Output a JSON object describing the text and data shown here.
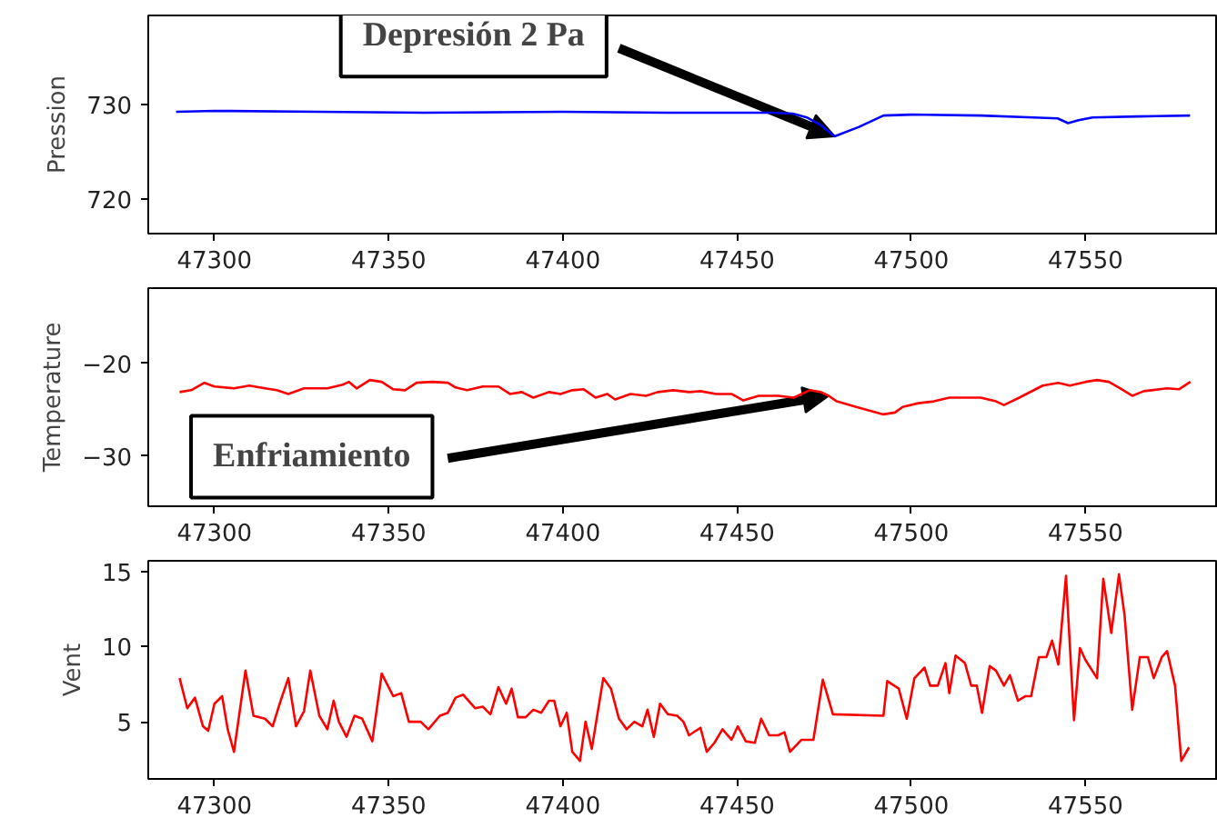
{
  "chart_data": [
    {
      "type": "line",
      "ylabel": "Pression",
      "xlim": [
        47281,
        47588
      ],
      "xticks": [
        47300,
        47350,
        47400,
        47450,
        47500,
        47550
      ],
      "ylim": [
        716.3,
        739.4
      ],
      "yticks": [
        720,
        730
      ],
      "grid": false,
      "annotations": [
        {
          "text": "Depresión 2 Pa",
          "x": 47478,
          "y": 726.6
        }
      ],
      "series": [
        {
          "color": "#0000ff",
          "x": [
            47289,
            47300,
            47330,
            47360,
            47400,
            47430,
            47460,
            47466,
            47470,
            47474,
            47478,
            47485,
            47492,
            47500,
            47520,
            47535,
            47542,
            47545,
            47548,
            47552,
            47565,
            47580
          ],
          "values": [
            729.2,
            729.3,
            729.2,
            729.1,
            729.2,
            729.1,
            729.1,
            729.0,
            728.6,
            727.8,
            726.6,
            727.6,
            728.8,
            728.9,
            728.8,
            728.6,
            728.5,
            728.0,
            728.3,
            728.6,
            728.7,
            728.8
          ]
        }
      ]
    },
    {
      "type": "line",
      "ylabel": "Temperature",
      "xlim": [
        47281,
        47588
      ],
      "xticks": [
        47300,
        47350,
        47400,
        47450,
        47500,
        47550
      ],
      "ylim": [
        -35.4,
        -11.9
      ],
      "yticks": [
        {
          "value": -30,
          "label": "−30"
        },
        {
          "value": -20,
          "label": "−20"
        }
      ],
      "grid": false,
      "annotations": [
        {
          "text": "Enfriamiento",
          "x": 47476.3,
          "y": -23.5
        }
      ],
      "series": [
        {
          "color": "#ff0000",
          "x": [
            47290.0,
            47293.3,
            47297.1,
            47300,
            47305.6,
            47310.0,
            47314.5,
            47317.9,
            47321.2,
            47325.7,
            47332.4,
            47336.8,
            47338.6,
            47340.8,
            47344.6,
            47348.0,
            47351.3,
            47354.7,
            47358.0,
            47362.5,
            47367.0,
            47369.2,
            47372.5,
            47377.0,
            47381.5,
            47384.8,
            47388.2,
            47391.5,
            47396.0,
            47399.3,
            47402.7,
            47406.0,
            47409.4,
            47412.7,
            47415.0,
            47419.4,
            47423.9,
            47427.2,
            47431.7,
            47436.2,
            47439.5,
            47444.0,
            47448.4,
            47451.8,
            47456.2,
            47461.8,
            47466.3,
            47470.8,
            47474.1,
            47476.3,
            47478.6,
            47484.2,
            47492.0,
            47495.3,
            47497.5,
            47502.0,
            47506.5,
            47510.9,
            47515.4,
            47519.9,
            47524.3,
            47526.6,
            47531.0,
            47537.7,
            47542.2,
            47545.5,
            47550.0,
            47553.3,
            47556.7,
            47560.0,
            47563.4,
            47566.7,
            47571.2,
            47573.4,
            47576.8,
            47580.1
          ],
          "values": [
            -23.1,
            -22.9,
            -22.1,
            -22.5,
            -22.7,
            -22.4,
            -22.7,
            -22.9,
            -23.3,
            -22.7,
            -22.7,
            -22.3,
            -22.0,
            -22.7,
            -21.8,
            -22.0,
            -22.8,
            -22.9,
            -22.1,
            -22.0,
            -22.1,
            -22.6,
            -22.9,
            -22.5,
            -22.5,
            -23.3,
            -23.1,
            -23.7,
            -23.1,
            -23.3,
            -22.9,
            -22.8,
            -23.7,
            -23.3,
            -23.9,
            -23.3,
            -23.5,
            -23.1,
            -22.9,
            -23.1,
            -23.0,
            -23.3,
            -23.3,
            -24.0,
            -23.5,
            -23.5,
            -23.7,
            -22.9,
            -23.1,
            -23.5,
            -24.1,
            -24.7,
            -25.5,
            -25.3,
            -24.7,
            -24.3,
            -24.1,
            -23.7,
            -23.7,
            -23.7,
            -24.1,
            -24.5,
            -23.7,
            -22.4,
            -22.1,
            -22.4,
            -22.0,
            -21.8,
            -22.0,
            -22.7,
            -23.5,
            -23.0,
            -22.8,
            -22.7,
            -22.8,
            -22.0
          ]
        }
      ]
    },
    {
      "type": "line",
      "ylabel": "Vent",
      "xlim": [
        47281,
        47588
      ],
      "xticks": [
        47300,
        47350,
        47400,
        47450,
        47500,
        47550
      ],
      "ylim": [
        1.2,
        15.7
      ],
      "yticks": [
        5,
        10,
        15
      ],
      "grid": false,
      "series": [
        {
          "color": "#ff0000",
          "x": [
            47290.0,
            47292.2,
            47294.4,
            47296.7,
            47298.2,
            47300,
            47302.2,
            47303.8,
            47305.6,
            47308.9,
            47311.2,
            47314.5,
            47316.7,
            47319.0,
            47321.2,
            47323.4,
            47325.7,
            47327.5,
            47330.1,
            47332.4,
            47334.2,
            47335.7,
            47337.9,
            47340.2,
            47342.4,
            47345.3,
            47348.0,
            47351.3,
            47353.6,
            47355.8,
            47359.2,
            47361.4,
            47364.7,
            47367.0,
            47369.2,
            47371.4,
            47374.8,
            47377.0,
            47379.2,
            47381.5,
            47383.7,
            47385.3,
            47387.1,
            47389.3,
            47391.5,
            47393.8,
            47396.0,
            47397.5,
            47399.3,
            47401.1,
            47402.7,
            47404.9,
            47406.5,
            47408.3,
            47411.6,
            47413.8,
            47416.1,
            47418.3,
            47420.5,
            47422.8,
            47424.3,
            47426.1,
            47427.9,
            47430.1,
            47432.8,
            47434.6,
            47436.2,
            47439.5,
            47441.3,
            47443.5,
            47445.8,
            47448.4,
            47450.2,
            47452.5,
            47455.1,
            47456.9,
            47459.2,
            47461.8,
            47463.6,
            47465.2,
            47468.5,
            47471.9,
            47474.6,
            47477.5,
            47492.0,
            47493.1,
            47496.4,
            47498.7,
            47500.9,
            47503.8,
            47505.4,
            47507.6,
            47509.8,
            47510.9,
            47512.7,
            47515.4,
            47517.2,
            47518.8,
            47520.3,
            47522.5,
            47524.3,
            47526.6,
            47528.3,
            47530.6,
            47532.8,
            47534.4,
            47536.6,
            47538.8,
            47540.4,
            47542.2,
            47544.4,
            47546.7,
            47548.4,
            47550.0,
            47553.3,
            47555.1,
            47557.4,
            47559.6,
            47561.2,
            47563.4,
            47565.6,
            47567.9,
            47569.6,
            47571.9,
            47573.4,
            47575.7,
            47577.5,
            47579.7
          ],
          "values": [
            7.9,
            5.9,
            6.6,
            4.7,
            4.4,
            6.2,
            6.7,
            4.5,
            3.0,
            8.4,
            5.4,
            5.2,
            4.7,
            6.4,
            7.9,
            4.7,
            5.7,
            8.4,
            5.4,
            4.5,
            6.4,
            5.0,
            4.0,
            5.4,
            5.2,
            3.7,
            8.2,
            6.7,
            6.9,
            5.0,
            5.0,
            4.5,
            5.4,
            5.6,
            6.6,
            6.8,
            5.9,
            6.0,
            5.5,
            7.3,
            6.2,
            7.2,
            5.3,
            5.3,
            5.8,
            5.6,
            6.4,
            6.4,
            4.7,
            5.6,
            3.0,
            2.4,
            5.0,
            3.2,
            7.9,
            7.2,
            5.2,
            4.5,
            5.0,
            4.7,
            5.8,
            4.0,
            6.2,
            5.5,
            5.4,
            5.0,
            4.1,
            4.6,
            3.0,
            3.6,
            4.5,
            3.8,
            4.7,
            3.7,
            3.6,
            5.2,
            4.1,
            4.1,
            4.3,
            3.0,
            3.8,
            3.8,
            7.8,
            5.5,
            5.4,
            7.7,
            7.2,
            5.2,
            7.9,
            8.6,
            7.4,
            7.4,
            8.9,
            6.9,
            9.4,
            8.9,
            7.4,
            7.4,
            5.6,
            8.7,
            8.4,
            7.4,
            8.1,
            6.4,
            6.7,
            6.7,
            9.3,
            9.3,
            10.4,
            8.8,
            14.7,
            5.1,
            9.9,
            9.1,
            7.9,
            14.5,
            10.9,
            14.8,
            12.1,
            5.8,
            9.3,
            9.3,
            7.9,
            9.3,
            9.7,
            7.4,
            2.4,
            3.3
          ]
        }
      ]
    }
  ]
}
